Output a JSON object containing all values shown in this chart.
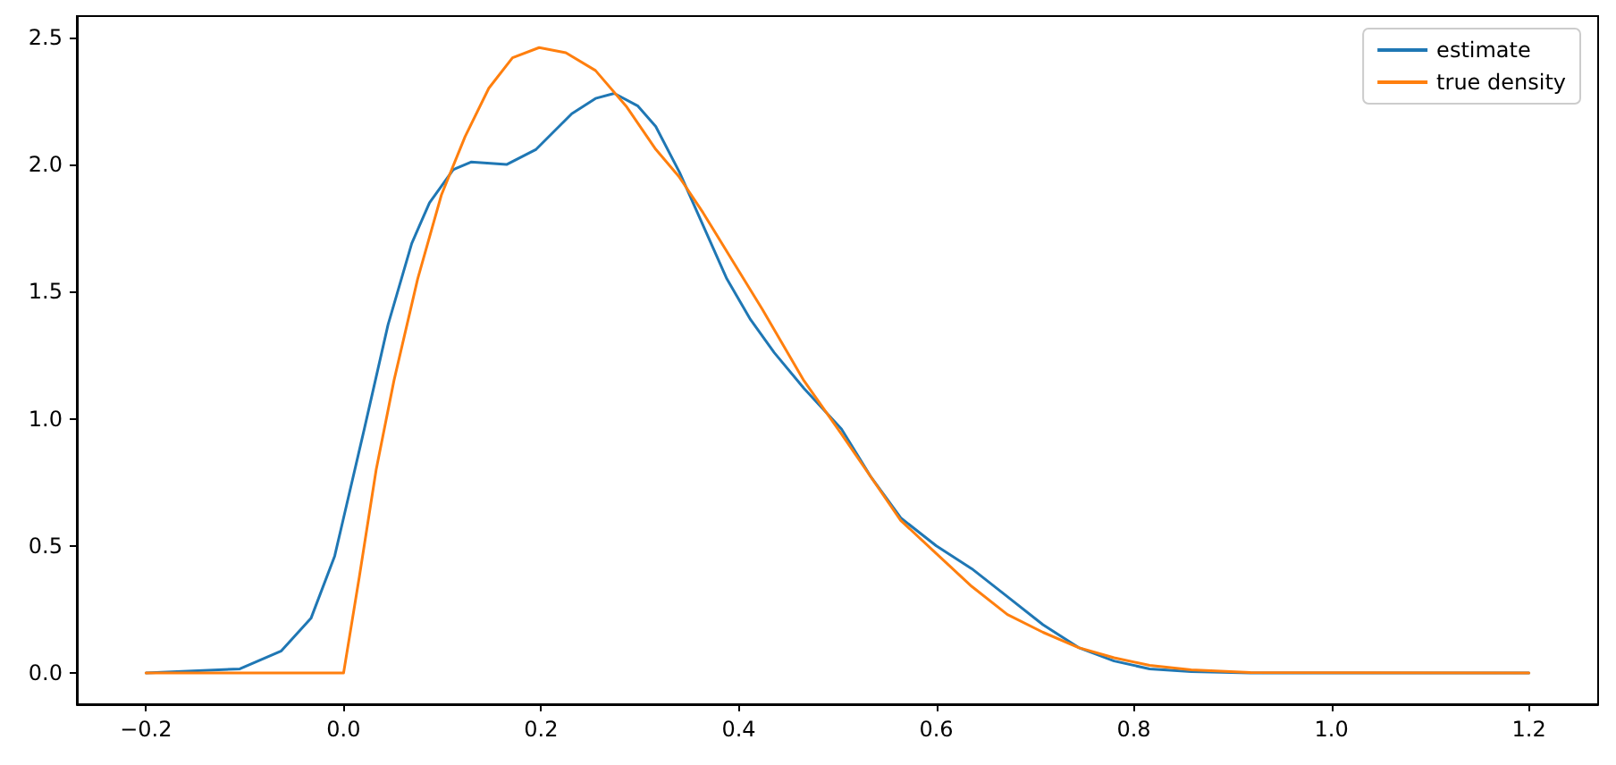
{
  "chart_data": {
    "type": "line",
    "x": [
      -0.2,
      -0.105,
      -0.063,
      -0.033,
      -0.009,
      0,
      0.021,
      0.045,
      0.069,
      0.087,
      0.111,
      0.129,
      0.165,
      0.195,
      0.231,
      0.255,
      0.274,
      0.298,
      0.316,
      0.34,
      0.364,
      0.388,
      0.412,
      0.436,
      0.466,
      0.504,
      0.534,
      0.564,
      0.6,
      0.636,
      0.672,
      0.708,
      0.744,
      0.78,
      0.816,
      0.858,
      0.918,
      1.2
    ],
    "series": [
      {
        "name": "estimate",
        "color": "#1f77b4",
        "values": [
          0,
          0.016,
          0.087,
          0.215,
          0.46,
          0.61,
          0.96,
          1.37,
          1.69,
          1.85,
          1.98,
          2.01,
          2.0,
          2.06,
          2.2,
          2.26,
          2.28,
          2.23,
          2.15,
          1.97,
          1.76,
          1.55,
          1.39,
          1.26,
          1.12,
          0.96,
          0.77,
          0.61,
          0.5,
          0.41,
          0.3,
          0.19,
          0.1,
          0.047,
          0.016,
          0.005,
          0,
          0
        ]
      },
      {
        "name": "true density",
        "color": "#ff7f0e",
        "x": [
          -0.2,
          0,
          0.016,
          0.033,
          0.051,
          0.075,
          0.099,
          0.123,
          0.147,
          0.171,
          0.198,
          0.225,
          0.255,
          0.286,
          0.316,
          0.34,
          0.364,
          0.394,
          0.424,
          0.466,
          0.504,
          0.534,
          0.564,
          0.6,
          0.636,
          0.672,
          0.708,
          0.744,
          0.78,
          0.816,
          0.858,
          0.918,
          1.2
        ],
        "values": [
          0,
          0,
          0.38,
          0.8,
          1.15,
          1.55,
          1.88,
          2.11,
          2.3,
          2.42,
          2.46,
          2.44,
          2.37,
          2.23,
          2.06,
          1.95,
          1.81,
          1.62,
          1.43,
          1.15,
          0.94,
          0.77,
          0.6,
          0.47,
          0.34,
          0.23,
          0.16,
          0.1,
          0.06,
          0.03,
          0.012,
          0.002,
          0
        ]
      }
    ],
    "xlim": [
      -0.27,
      1.27
    ],
    "ylim": [
      -0.123,
      2.584
    ],
    "xticks": [
      {
        "value": -0.2,
        "label": "−0.2"
      },
      {
        "value": 0,
        "label": "0.0"
      },
      {
        "value": 0.2,
        "label": "0.2"
      },
      {
        "value": 0.4,
        "label": "0.4"
      },
      {
        "value": 0.6,
        "label": "0.6"
      },
      {
        "value": 0.8,
        "label": "0.8"
      },
      {
        "value": 1,
        "label": "1.0"
      },
      {
        "value": 1.2,
        "label": "1.2"
      }
    ],
    "yticks": [
      {
        "value": 0,
        "label": "0.0"
      },
      {
        "value": 0.5,
        "label": "0.5"
      },
      {
        "value": 1,
        "label": "1.0"
      },
      {
        "value": 1.5,
        "label": "1.5"
      },
      {
        "value": 2,
        "label": "2.0"
      },
      {
        "value": 2.5,
        "label": "2.5"
      }
    ],
    "grid": false,
    "legend": "top right",
    "marker": "none",
    "line_style": "solid"
  }
}
